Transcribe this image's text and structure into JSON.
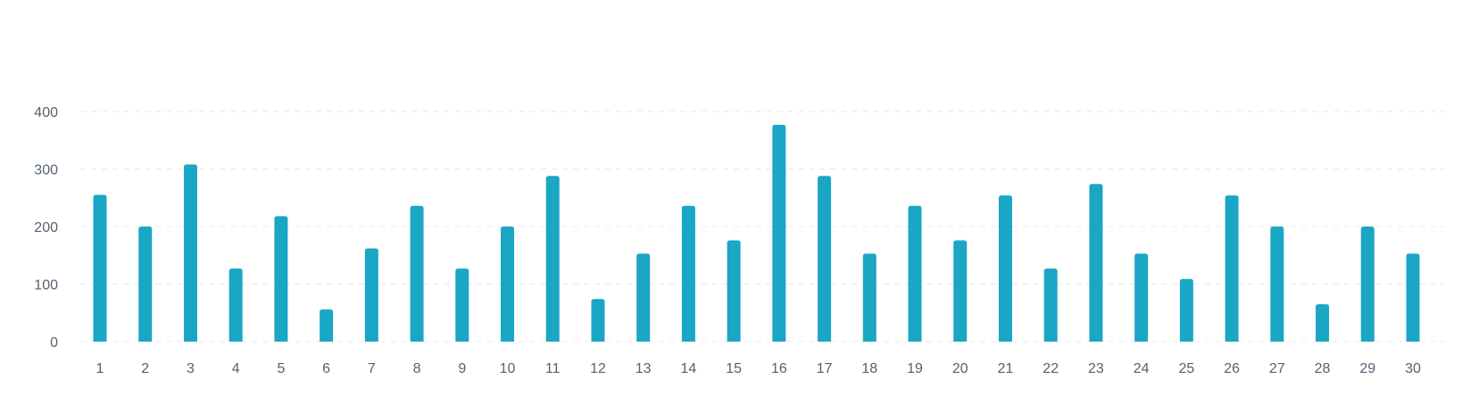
{
  "chart_data": {
    "type": "bar",
    "title": "",
    "xlabel": "",
    "ylabel": "",
    "categories": [
      "1",
      "2",
      "3",
      "4",
      "5",
      "6",
      "7",
      "8",
      "9",
      "10",
      "11",
      "12",
      "13",
      "14",
      "15",
      "16",
      "17",
      "18",
      "19",
      "20",
      "21",
      "22",
      "23",
      "24",
      "25",
      "26",
      "27",
      "28",
      "29",
      "30"
    ],
    "values": [
      255,
      200,
      308,
      127,
      218,
      56,
      162,
      236,
      127,
      200,
      288,
      74,
      153,
      236,
      176,
      377,
      288,
      153,
      236,
      176,
      254,
      127,
      274,
      153,
      109,
      254,
      200,
      65,
      200,
      153
    ],
    "ylim": [
      0,
      400
    ],
    "yticks": [
      "0",
      "100",
      "200",
      "300",
      "400"
    ],
    "grid": true,
    "legend": "none",
    "bar_color": "#1aa6c5"
  }
}
